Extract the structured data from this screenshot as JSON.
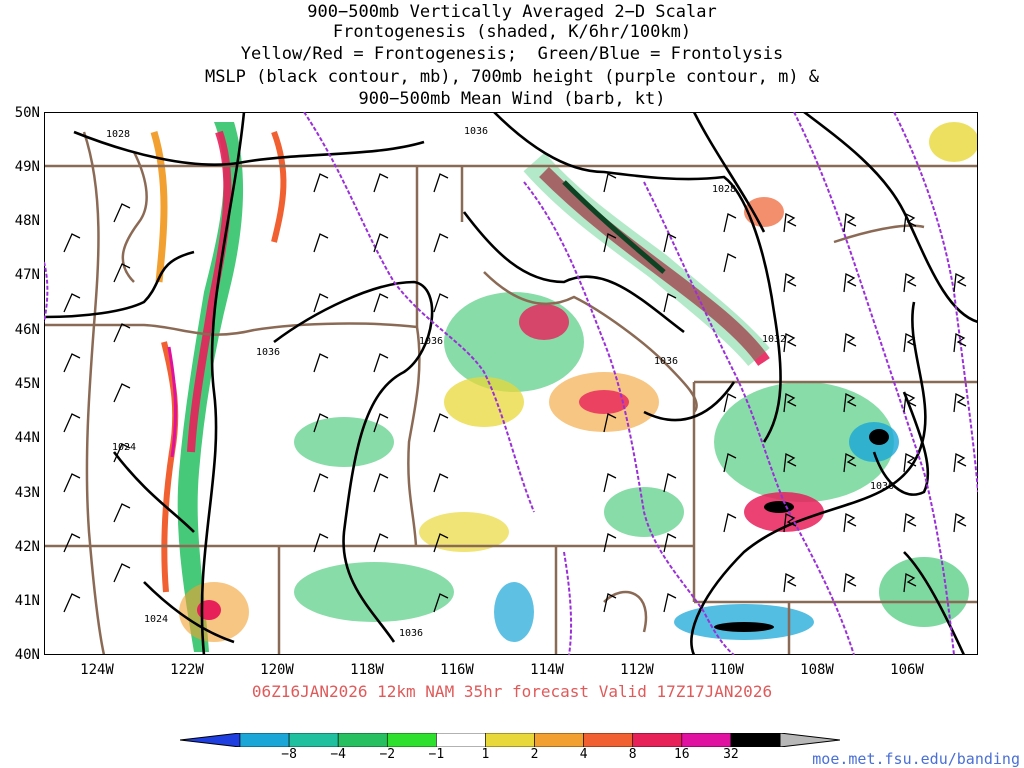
{
  "title": {
    "lines": [
      "900−500mb Vertically Averaged 2−D Scalar",
      "Frontogenesis (shaded, K/6hr/100km)",
      "Yellow/Red = Frontogenesis;  Green/Blue = Frontolysis",
      "MSLP (black contour, mb), 700mb height (purple contour, m) &",
      "900−500mb Mean Wind (barb, kt)"
    ]
  },
  "map": {
    "lat_labels": [
      "50N",
      "49N",
      "48N",
      "47N",
      "46N",
      "45N",
      "44N",
      "43N",
      "42N",
      "41N",
      "40N"
    ],
    "lon_labels": [
      "124W",
      "122W",
      "120W",
      "118W",
      "116W",
      "114W",
      "112W",
      "110W",
      "108W",
      "106W"
    ],
    "contour_labels": [
      "1028",
      "1036",
      "1028",
      "1036",
      "1036",
      "1032",
      "1036",
      "1024",
      "1036",
      "1024",
      "1036"
    ],
    "colors": {
      "mslp": "#000000",
      "height700": "#9b30d9",
      "borders": "#8b6a55",
      "barb": "#000000"
    }
  },
  "valid": "06Z16JAN2026 12km NAM 35hr forecast Valid 17Z17JAN2026",
  "colorbar": {
    "labels": [
      "−8",
      "−4",
      "−2",
      "−1",
      "1",
      "2",
      "4",
      "8",
      "16",
      "32"
    ],
    "colors": [
      "#1f3fe0",
      "#1aa7d8",
      "#1ec0a0",
      "#26c060",
      "#2ee02e",
      "#ffffff",
      "#e8d83a",
      "#f2a030",
      "#f06030",
      "#e8205a",
      "#e010a0",
      "#000000",
      "#b8b8b8"
    ]
  },
  "credit": "moe.met.fsu.edu/banding"
}
